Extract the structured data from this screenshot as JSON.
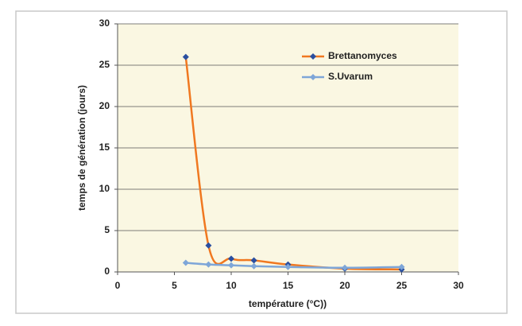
{
  "chart_data": {
    "type": "line",
    "x": [
      6,
      8,
      10,
      12,
      15,
      20,
      25
    ],
    "series": [
      {
        "name": "Brettanomyces",
        "color": "#f07820",
        "marker_color": "#2a4fa0",
        "values": [
          26,
          3.2,
          1.6,
          1.4,
          0.9,
          0.4,
          0.3
        ]
      },
      {
        "name": "S.Uvarum",
        "color": "#7ea6d8",
        "marker_color": "#7ea6d8",
        "values": [
          1.1,
          0.9,
          0.8,
          0.7,
          0.6,
          0.5,
          0.6
        ]
      }
    ],
    "xlabel": "température (°C))",
    "ylabel": "temps de génération (jours)",
    "xlim": [
      0,
      30
    ],
    "xticks": [
      0,
      5,
      10,
      15,
      20,
      25,
      30
    ],
    "ylim": [
      0,
      30
    ],
    "yticks": [
      0,
      5,
      10,
      15,
      20,
      25,
      30
    ],
    "grid": true,
    "legend": "upper right",
    "smooth": true
  }
}
